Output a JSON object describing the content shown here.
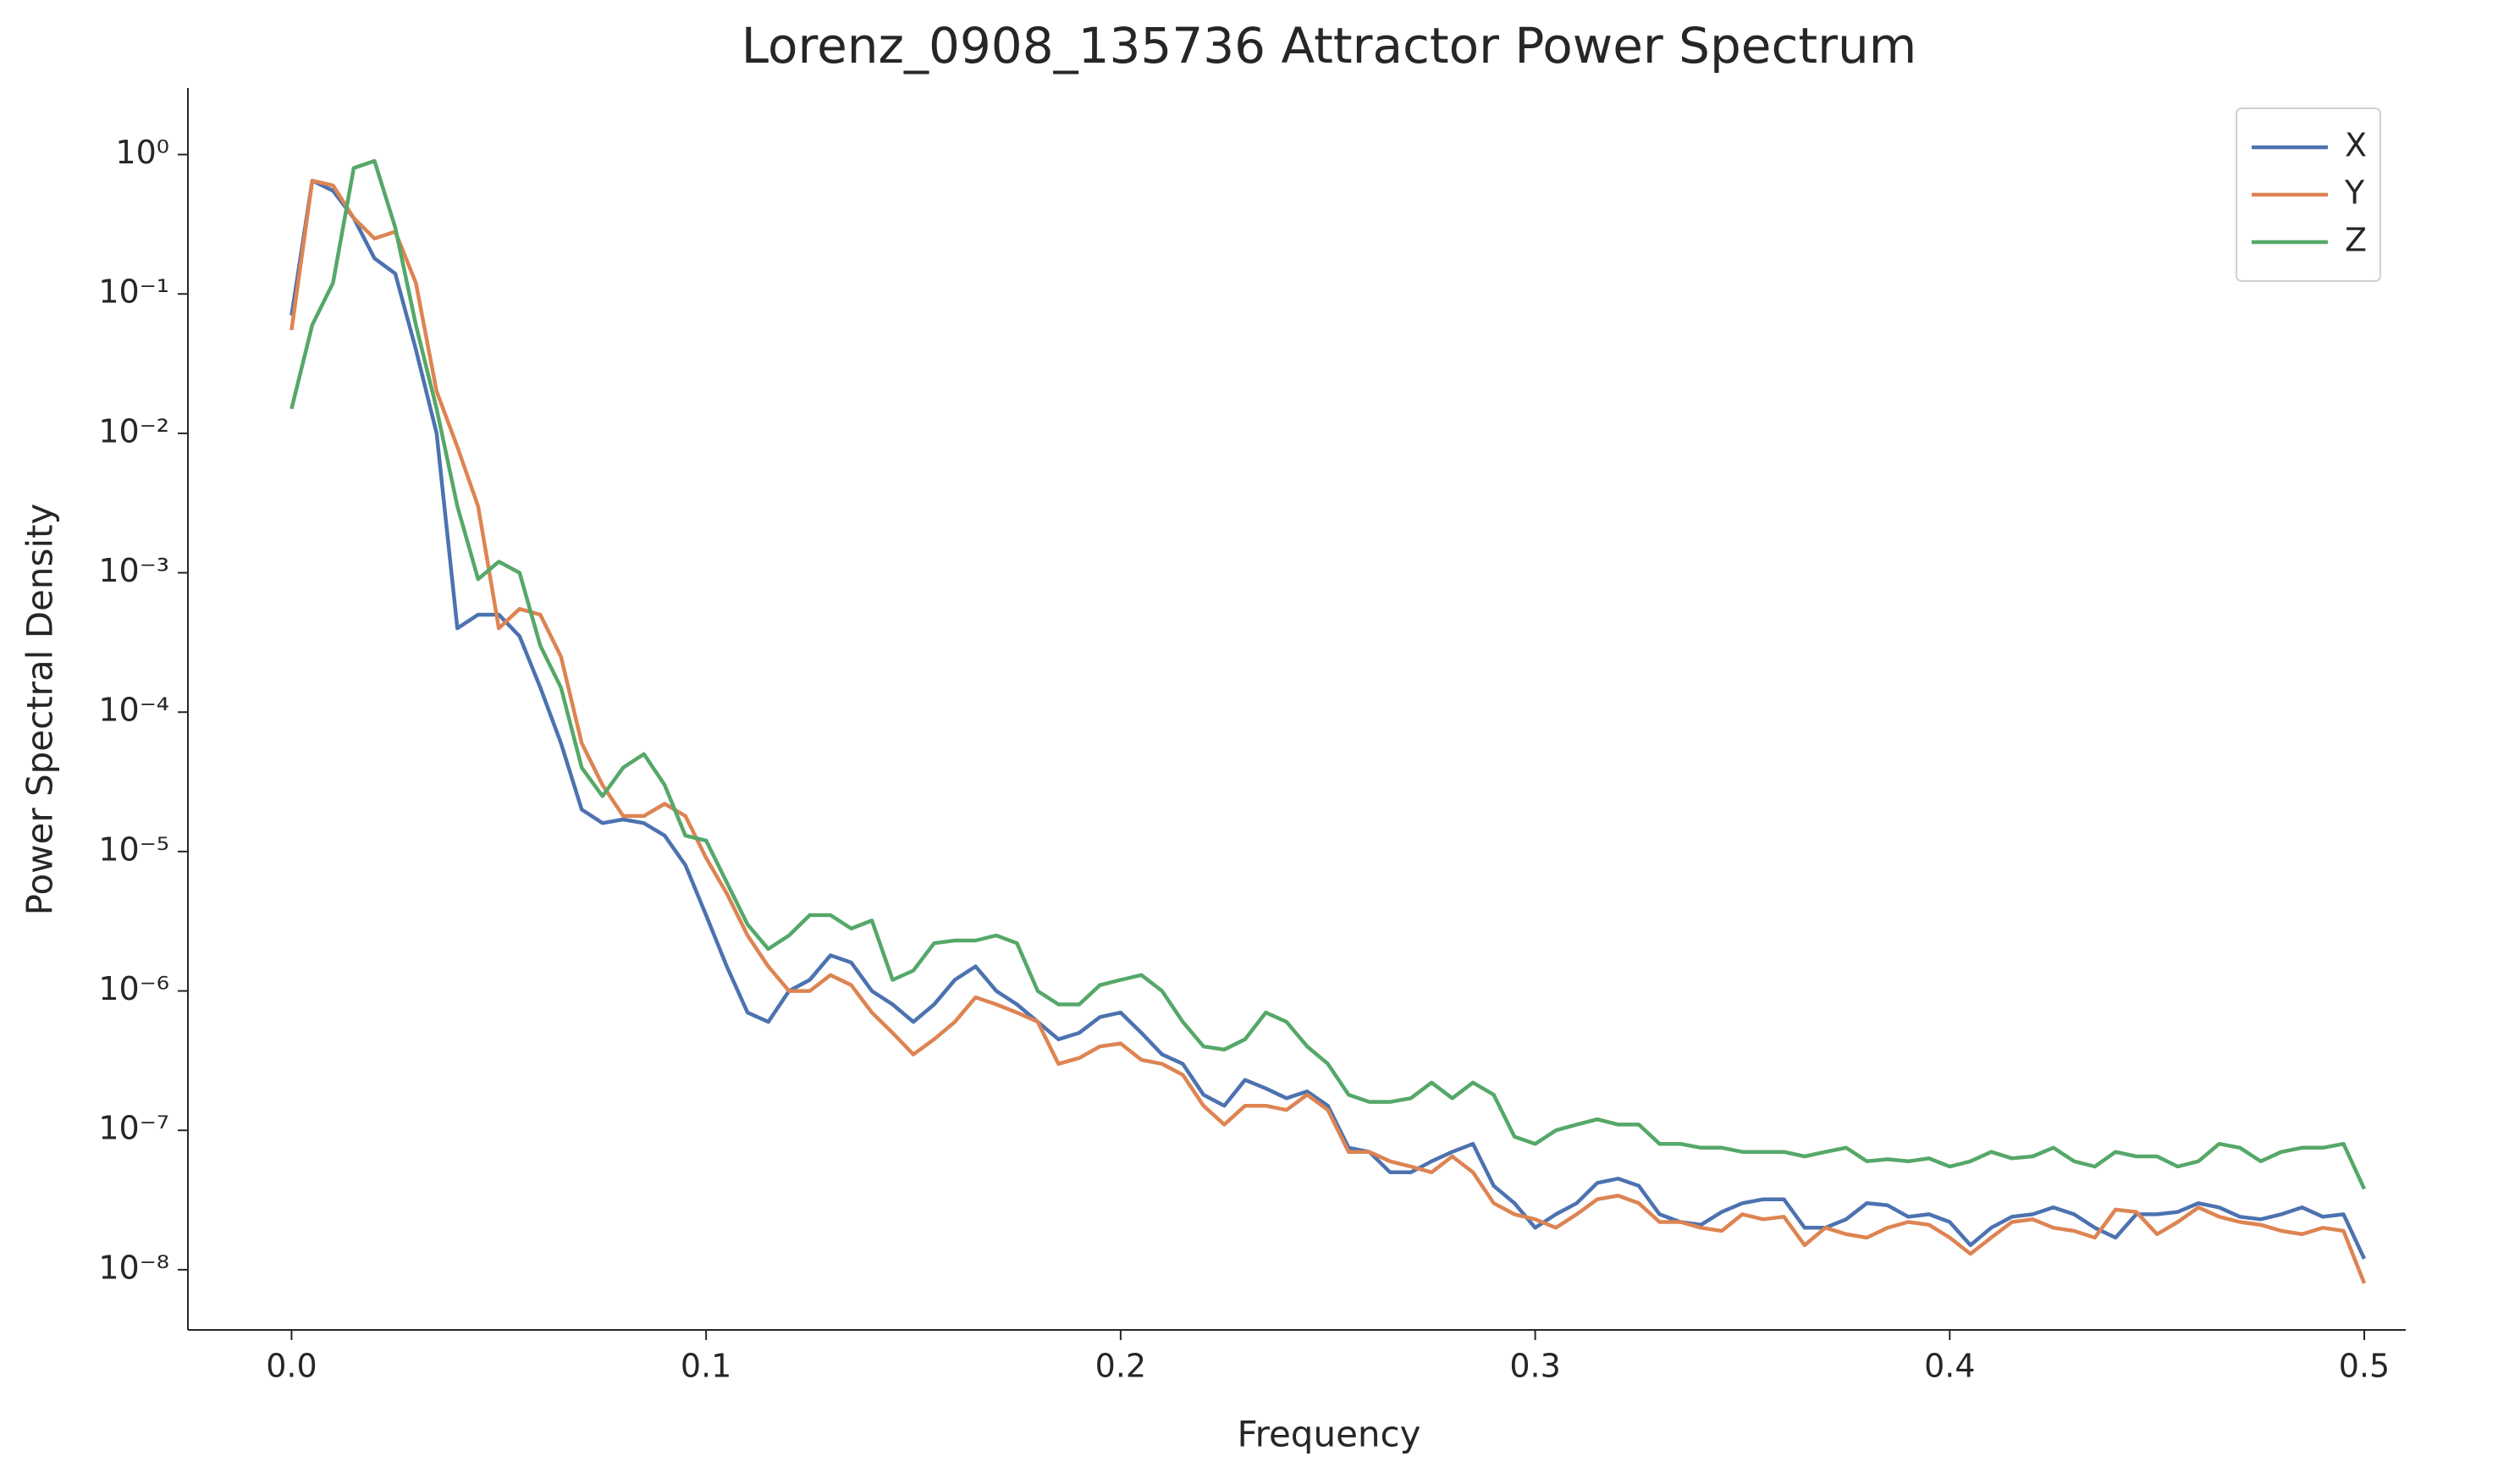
{
  "chart_data": {
    "type": "line",
    "title": "Lorenz_0908_135736 Attractor Power Spectrum",
    "x_label": "Frequency",
    "y_label": "Power Spectral Density",
    "log_y": true,
    "legend": "upper right",
    "xlim": [
      -0.025,
      0.51
    ],
    "ylim": [
      3.7e-09,
      3
    ],
    "xticks": [
      {
        "value": 0,
        "label": "0.0"
      },
      0.1,
      0.2,
      0.3,
      0.4,
      0.5
    ],
    "yticks": [
      {
        "value": 1e-08,
        "label": "10⁻⁸"
      },
      {
        "value": 1e-07,
        "label": "10⁻⁷"
      },
      {
        "value": 1e-06,
        "label": "10⁻⁶"
      },
      {
        "value": 1e-05,
        "label": "10⁻⁵"
      },
      {
        "value": 0.0001,
        "label": "10⁻⁴"
      },
      {
        "value": 0.001,
        "label": "10⁻³"
      },
      {
        "value": 0.01,
        "label": "10⁻²"
      },
      {
        "value": 0.1,
        "label": "10⁻¹"
      },
      {
        "value": 1,
        "label": "10⁰"
      }
    ],
    "x": [
      0,
      0.005,
      0.01,
      0.015,
      0.02,
      0.025,
      0.03,
      0.035,
      0.04,
      0.045,
      0.05,
      0.055,
      0.06,
      0.065,
      0.07,
      0.075,
      0.08,
      0.085,
      0.09,
      0.095,
      0.1,
      0.105,
      0.11,
      0.115,
      0.12,
      0.125,
      0.13,
      0.135,
      0.14,
      0.145,
      0.15,
      0.155,
      0.16,
      0.165,
      0.17,
      0.175,
      0.18,
      0.185,
      0.19,
      0.195,
      0.2,
      0.205,
      0.21,
      0.215,
      0.22,
      0.225,
      0.23,
      0.235,
      0.24,
      0.245,
      0.25,
      0.255,
      0.26,
      0.265,
      0.27,
      0.275,
      0.28,
      0.285,
      0.29,
      0.295,
      0.3,
      0.305,
      0.31,
      0.315,
      0.32,
      0.325,
      0.33,
      0.335,
      0.34,
      0.345,
      0.35,
      0.355,
      0.36,
      0.365,
      0.37,
      0.375,
      0.38,
      0.385,
      0.39,
      0.395,
      0.4,
      0.405,
      0.41,
      0.415,
      0.42,
      0.425,
      0.43,
      0.435,
      0.44,
      0.445,
      0.45,
      0.455,
      0.46,
      0.465,
      0.47,
      0.475,
      0.48,
      0.485,
      0.49,
      0.495,
      0.5
    ],
    "series": [
      {
        "name": "X",
        "color": "#4c72b0",
        "values": [
          0.07,
          0.65,
          0.55,
          0.35,
          0.18,
          0.14,
          0.04,
          0.01,
          0.0004,
          0.0005,
          0.0005,
          0.00035,
          0.00015,
          6e-05,
          2e-05,
          1.6e-05,
          1.7e-05,
          1.6e-05,
          1.3e-05,
          8e-06,
          3.5e-06,
          1.5e-06,
          7e-07,
          6e-07,
          1e-06,
          1.2e-06,
          1.8e-06,
          1.6e-06,
          1e-06,
          8e-07,
          6e-07,
          8e-07,
          1.2e-06,
          1.5e-06,
          1e-06,
          8e-07,
          6e-07,
          4.5e-07,
          5e-07,
          6.5e-07,
          7e-07,
          5e-07,
          3.5e-07,
          3e-07,
          1.8e-07,
          1.5e-07,
          2.3e-07,
          2e-07,
          1.7e-07,
          1.9e-07,
          1.5e-07,
          7.5e-08,
          7e-08,
          5e-08,
          5e-08,
          6e-08,
          7e-08,
          8e-08,
          4e-08,
          3e-08,
          2e-08,
          2.5e-08,
          3e-08,
          4.2e-08,
          4.5e-08,
          4e-08,
          2.5e-08,
          2.2e-08,
          2.1e-08,
          2.6e-08,
          3e-08,
          3.2e-08,
          3.2e-08,
          2e-08,
          2e-08,
          2.3e-08,
          3e-08,
          2.9e-08,
          2.4e-08,
          2.5e-08,
          2.2e-08,
          1.5e-08,
          2e-08,
          2.4e-08,
          2.5e-08,
          2.8e-08,
          2.5e-08,
          2e-08,
          1.7e-08,
          2.5e-08,
          2.5e-08,
          2.6e-08,
          3e-08,
          2.8e-08,
          2.4e-08,
          2.3e-08,
          2.5e-08,
          2.8e-08,
          2.4e-08,
          2.5e-08,
          1.2e-08
        ]
      },
      {
        "name": "Y",
        "color": "#dd8452",
        "values": [
          0.055,
          0.65,
          0.6,
          0.35,
          0.25,
          0.28,
          0.12,
          0.02,
          0.008,
          0.003,
          0.0004,
          0.00055,
          0.0005,
          0.00025,
          6e-05,
          3e-05,
          1.8e-05,
          1.8e-05,
          2.2e-05,
          1.8e-05,
          9e-06,
          5e-06,
          2.5e-06,
          1.5e-06,
          1e-06,
          1e-06,
          1.3e-06,
          1.1e-06,
          7e-07,
          5e-07,
          3.5e-07,
          4.5e-07,
          6e-07,
          9e-07,
          8e-07,
          7e-07,
          6e-07,
          3e-07,
          3.3e-07,
          4e-07,
          4.2e-07,
          3.2e-07,
          3e-07,
          2.5e-07,
          1.5e-07,
          1.1e-07,
          1.5e-07,
          1.5e-07,
          1.4e-07,
          1.8e-07,
          1.4e-07,
          7e-08,
          7e-08,
          6e-08,
          5.5e-08,
          5e-08,
          6.5e-08,
          5e-08,
          3e-08,
          2.5e-08,
          2.3e-08,
          2e-08,
          2.5e-08,
          3.2e-08,
          3.4e-08,
          3e-08,
          2.2e-08,
          2.2e-08,
          2e-08,
          1.9e-08,
          2.5e-08,
          2.3e-08,
          2.4e-08,
          1.5e-08,
          2e-08,
          1.8e-08,
          1.7e-08,
          2e-08,
          2.2e-08,
          2.1e-08,
          1.7e-08,
          1.3e-08,
          1.7e-08,
          2.2e-08,
          2.3e-08,
          2e-08,
          1.9e-08,
          1.7e-08,
          2.7e-08,
          2.6e-08,
          1.8e-08,
          2.2e-08,
          2.8e-08,
          2.4e-08,
          2.2e-08,
          2.1e-08,
          1.9e-08,
          1.8e-08,
          2e-08,
          1.9e-08,
          8e-09
        ]
      },
      {
        "name": "Z",
        "color": "#55a868",
        "values": [
          0.015,
          0.06,
          0.12,
          0.8,
          0.9,
          0.3,
          0.06,
          0.015,
          0.003,
          0.0009,
          0.0012,
          0.001,
          0.0003,
          0.00015,
          4e-05,
          2.5e-05,
          4e-05,
          5e-05,
          3e-05,
          1.3e-05,
          1.2e-05,
          6e-06,
          3e-06,
          2e-06,
          2.5e-06,
          3.5e-06,
          3.5e-06,
          2.8e-06,
          3.2e-06,
          1.2e-06,
          1.4e-06,
          2.2e-06,
          2.3e-06,
          2.3e-06,
          2.5e-06,
          2.2e-06,
          1e-06,
          8e-07,
          8e-07,
          1.1e-06,
          1.2e-06,
          1.3e-06,
          1e-06,
          6e-07,
          4e-07,
          3.8e-07,
          4.5e-07,
          7e-07,
          6e-07,
          4e-07,
          3e-07,
          1.8e-07,
          1.6e-07,
          1.6e-07,
          1.7e-07,
          2.2e-07,
          1.7e-07,
          2.2e-07,
          1.8e-07,
          9e-08,
          8e-08,
          1e-07,
          1.1e-07,
          1.2e-07,
          1.1e-07,
          1.1e-07,
          8e-08,
          8e-08,
          7.5e-08,
          7.5e-08,
          7e-08,
          7e-08,
          7e-08,
          6.5e-08,
          7e-08,
          7.5e-08,
          6e-08,
          6.2e-08,
          6e-08,
          6.3e-08,
          5.5e-08,
          6e-08,
          7e-08,
          6.3e-08,
          6.5e-08,
          7.5e-08,
          6e-08,
          5.5e-08,
          7e-08,
          6.5e-08,
          6.5e-08,
          5.5e-08,
          6e-08,
          8e-08,
          7.5e-08,
          6e-08,
          7e-08,
          7.5e-08,
          7.5e-08,
          8e-08,
          3.8e-08
        ]
      }
    ]
  }
}
